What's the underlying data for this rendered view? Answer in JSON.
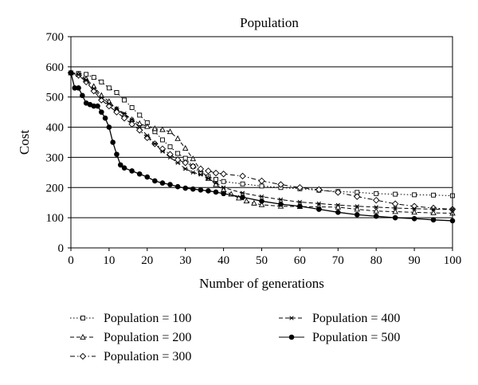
{
  "chart_data": {
    "type": "line",
    "title": "Population",
    "xlabel": "Number of generations",
    "ylabel": "Cost",
    "xlim": [
      0,
      100
    ],
    "ylim": [
      0,
      700
    ],
    "xticks": [
      0,
      10,
      20,
      30,
      40,
      50,
      60,
      70,
      80,
      90,
      100
    ],
    "yticks": [
      0,
      100,
      200,
      300,
      400,
      500,
      600,
      700
    ],
    "grid": "horizontal",
    "legend_position": "bottom",
    "series": [
      {
        "name": "Population = 100",
        "marker": "square",
        "line": "dotted",
        "points": [
          [
            0,
            580
          ],
          [
            2,
            578
          ],
          [
            4,
            575
          ],
          [
            6,
            565
          ],
          [
            8,
            550
          ],
          [
            10,
            530
          ],
          [
            12,
            515
          ],
          [
            14,
            490
          ],
          [
            16,
            465
          ],
          [
            18,
            440
          ],
          [
            20,
            415
          ],
          [
            22,
            385
          ],
          [
            24,
            358
          ],
          [
            26,
            335
          ],
          [
            28,
            313
          ],
          [
            30,
            297
          ],
          [
            32,
            270
          ],
          [
            34,
            248
          ],
          [
            36,
            236
          ],
          [
            38,
            227
          ],
          [
            40,
            220
          ],
          [
            45,
            212
          ],
          [
            50,
            205
          ],
          [
            55,
            200
          ],
          [
            60,
            196
          ],
          [
            65,
            191
          ],
          [
            70,
            187
          ],
          [
            75,
            184
          ],
          [
            80,
            180
          ],
          [
            85,
            178
          ],
          [
            90,
            176
          ],
          [
            95,
            175
          ],
          [
            100,
            173
          ]
        ]
      },
      {
        "name": "Population = 200",
        "marker": "triangle",
        "line": "dashed",
        "points": [
          [
            0,
            580
          ],
          [
            2,
            575
          ],
          [
            4,
            560
          ],
          [
            6,
            535
          ],
          [
            8,
            505
          ],
          [
            10,
            485
          ],
          [
            12,
            460
          ],
          [
            14,
            440
          ],
          [
            16,
            425
          ],
          [
            18,
            412
          ],
          [
            20,
            402
          ],
          [
            22,
            395
          ],
          [
            24,
            392
          ],
          [
            26,
            385
          ],
          [
            28,
            362
          ],
          [
            30,
            330
          ],
          [
            32,
            295
          ],
          [
            34,
            258
          ],
          [
            36,
            230
          ],
          [
            38,
            210
          ],
          [
            40,
            192
          ],
          [
            42,
            178
          ],
          [
            44,
            165
          ],
          [
            46,
            155
          ],
          [
            48,
            148
          ],
          [
            50,
            143
          ],
          [
            55,
            138
          ],
          [
            60,
            137
          ],
          [
            65,
            136
          ],
          [
            70,
            135
          ],
          [
            75,
            128
          ],
          [
            80,
            122
          ],
          [
            85,
            120
          ],
          [
            90,
            118
          ],
          [
            95,
            116
          ],
          [
            100,
            115
          ]
        ]
      },
      {
        "name": "Population = 300",
        "marker": "diamond",
        "line": "dashdot",
        "points": [
          [
            0,
            580
          ],
          [
            2,
            572
          ],
          [
            4,
            550
          ],
          [
            6,
            520
          ],
          [
            8,
            490
          ],
          [
            10,
            470
          ],
          [
            12,
            450
          ],
          [
            14,
            430
          ],
          [
            16,
            410
          ],
          [
            18,
            390
          ],
          [
            20,
            365
          ],
          [
            22,
            345
          ],
          [
            24,
            328
          ],
          [
            26,
            310
          ],
          [
            28,
            292
          ],
          [
            30,
            282
          ],
          [
            32,
            270
          ],
          [
            34,
            262
          ],
          [
            36,
            255
          ],
          [
            38,
            248
          ],
          [
            40,
            245
          ],
          [
            45,
            238
          ],
          [
            50,
            222
          ],
          [
            55,
            210
          ],
          [
            60,
            200
          ],
          [
            65,
            193
          ],
          [
            70,
            184
          ],
          [
            75,
            170
          ],
          [
            80,
            158
          ],
          [
            85,
            146
          ],
          [
            90,
            138
          ],
          [
            95,
            132
          ],
          [
            100,
            128
          ]
        ]
      },
      {
        "name": "Population = 400",
        "marker": "asterisk",
        "line": "dashed",
        "points": [
          [
            0,
            580
          ],
          [
            2,
            574
          ],
          [
            4,
            555
          ],
          [
            6,
            528
          ],
          [
            8,
            498
          ],
          [
            10,
            478
          ],
          [
            12,
            462
          ],
          [
            14,
            445
          ],
          [
            16,
            425
          ],
          [
            18,
            400
          ],
          [
            20,
            372
          ],
          [
            22,
            345
          ],
          [
            24,
            320
          ],
          [
            26,
            300
          ],
          [
            28,
            282
          ],
          [
            30,
            262
          ],
          [
            32,
            250
          ],
          [
            34,
            243
          ],
          [
            36,
            230
          ],
          [
            38,
            215
          ],
          [
            40,
            200
          ],
          [
            45,
            182
          ],
          [
            50,
            170
          ],
          [
            55,
            160
          ],
          [
            60,
            152
          ],
          [
            65,
            147
          ],
          [
            70,
            142
          ],
          [
            75,
            138
          ],
          [
            80,
            135
          ],
          [
            85,
            132
          ],
          [
            90,
            130
          ],
          [
            95,
            128
          ],
          [
            100,
            127
          ]
        ]
      },
      {
        "name": "Population = 500",
        "marker": "circle",
        "line": "solid",
        "points": [
          [
            0,
            580
          ],
          [
            1,
            530
          ],
          [
            2,
            530
          ],
          [
            3,
            505
          ],
          [
            4,
            480
          ],
          [
            5,
            475
          ],
          [
            6,
            470
          ],
          [
            7,
            470
          ],
          [
            8,
            450
          ],
          [
            9,
            430
          ],
          [
            10,
            400
          ],
          [
            11,
            350
          ],
          [
            12,
            310
          ],
          [
            13,
            275
          ],
          [
            14,
            265
          ],
          [
            16,
            255
          ],
          [
            18,
            245
          ],
          [
            20,
            235
          ],
          [
            22,
            222
          ],
          [
            24,
            215
          ],
          [
            26,
            210
          ],
          [
            28,
            203
          ],
          [
            30,
            198
          ],
          [
            32,
            195
          ],
          [
            34,
            192
          ],
          [
            36,
            189
          ],
          [
            38,
            185
          ],
          [
            40,
            180
          ],
          [
            45,
            168
          ],
          [
            50,
            155
          ],
          [
            55,
            145
          ],
          [
            60,
            138
          ],
          [
            65,
            128
          ],
          [
            70,
            118
          ],
          [
            75,
            110
          ],
          [
            80,
            105
          ],
          [
            85,
            100
          ],
          [
            90,
            97
          ],
          [
            95,
            93
          ],
          [
            100,
            90
          ]
        ]
      }
    ]
  }
}
